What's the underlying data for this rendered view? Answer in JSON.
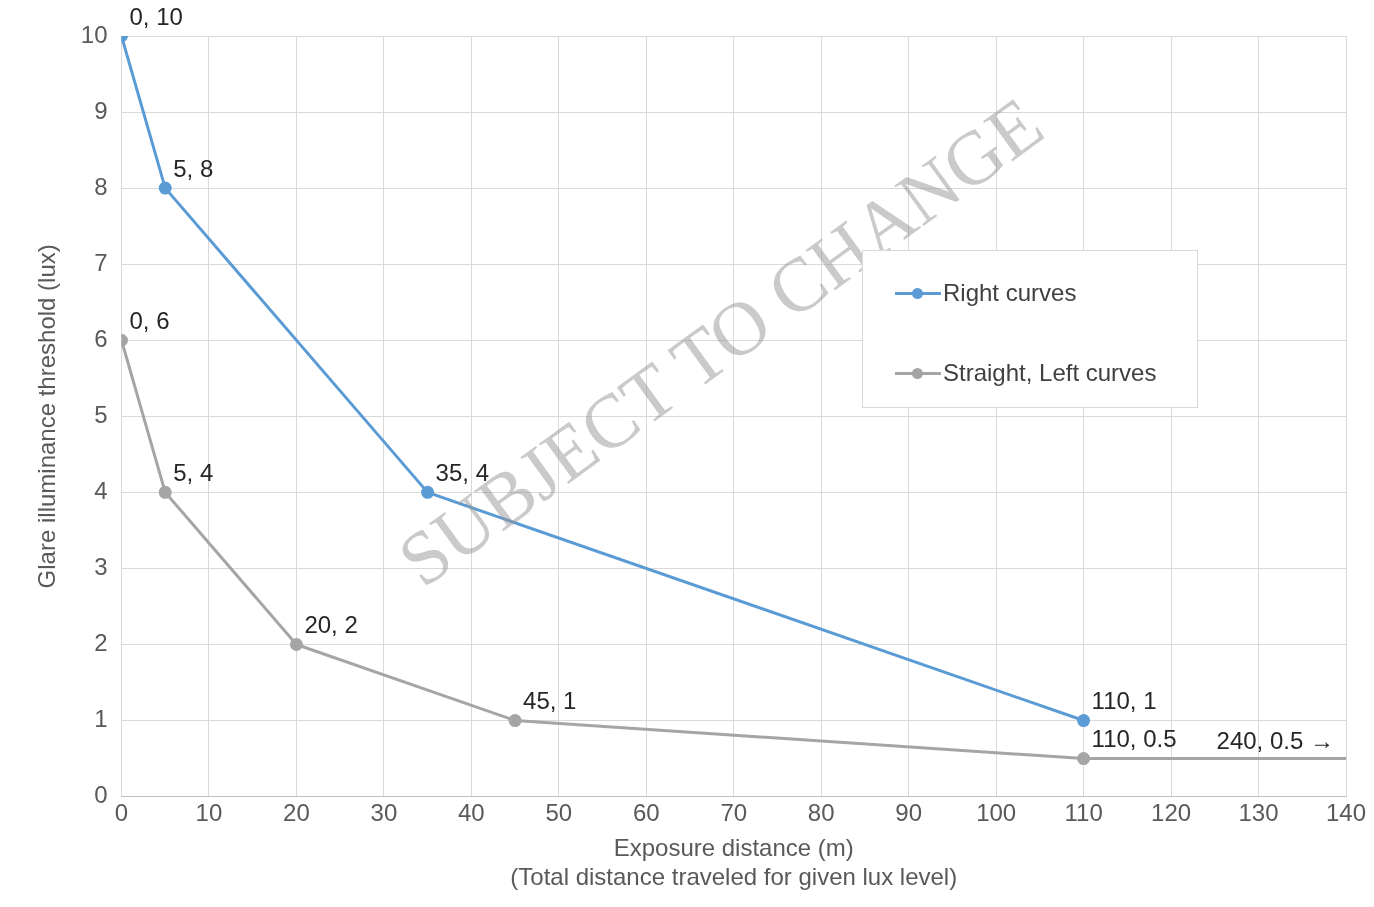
{
  "chart_data": {
    "type": "line",
    "xlabel": "Exposure distance (m)\n(Total distance traveled for given lux level)",
    "ylabel": "Glare illuminance threshold (lux)",
    "xlim": [
      0,
      140
    ],
    "xticks": [
      0,
      10,
      20,
      30,
      40,
      50,
      60,
      70,
      80,
      90,
      100,
      110,
      120,
      130,
      140
    ],
    "ylim": [
      0,
      10
    ],
    "yticks": [
      0,
      1,
      2,
      3,
      4,
      5,
      6,
      7,
      8,
      9,
      10
    ],
    "grid": true,
    "legend": "top right",
    "marker": "circle",
    "line_style": "solid",
    "series": [
      {
        "name": "Right curves",
        "color": "#5b9bd5",
        "x": [
          0,
          5,
          35,
          110
        ],
        "values": [
          10,
          8,
          4,
          1
        ],
        "value_labels": [
          "0, 10",
          "5, 8",
          "35, 4",
          "110, 1"
        ]
      },
      {
        "name": "Straight, Left curves",
        "color": "#a5a5a5",
        "x": [
          0,
          5,
          20,
          45,
          110,
          140
        ],
        "values": [
          6,
          4,
          2,
          1,
          0.5,
          0.5
        ],
        "value_labels": [
          "0, 6",
          "5, 4",
          "20, 2",
          "45, 1",
          "110, 0.5",
          null
        ]
      }
    ],
    "annotations": [
      {
        "text": "240, 0.5 →",
        "x": 140,
        "y": 0.5
      },
      "SUBJECT TO CHANGE"
    ]
  }
}
